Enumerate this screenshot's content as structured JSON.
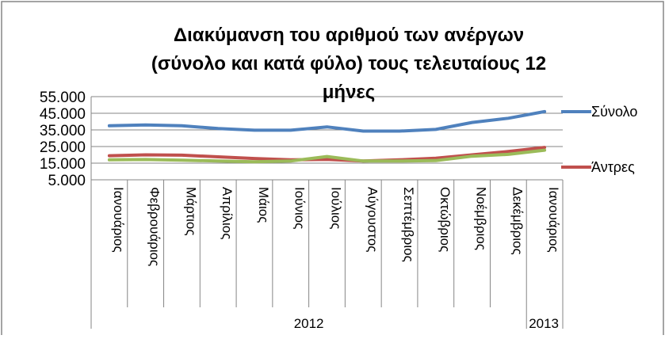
{
  "chart_data": {
    "type": "line",
    "title_lines": [
      "Διακύμανση του αριθμού των ανέργων",
      "(σύνολο και κατά φύλο) τους τελευταίους 12",
      "μήνες"
    ],
    "categories": [
      "Ιανουάριος",
      "Φεβρουάριος",
      "Μάρτιος",
      "Απρίλιος",
      "Μάιος",
      "Ιούνιος",
      "Ιούλιος",
      "Αύγουστος",
      "Σεπτέμβριος",
      "Οκτώβριος",
      "Νοέμβριος",
      "Δεκέμβριος",
      "Ιανουάριος"
    ],
    "year_groups": [
      {
        "label": "2012",
        "start": 0,
        "end": 11
      },
      {
        "label": "2013",
        "start": 12,
        "end": 12
      }
    ],
    "yticks": [
      "55.000",
      "45.000",
      "35.000",
      "25.000",
      "15.000",
      "5.000"
    ],
    "ylim": [
      5000,
      55000
    ],
    "grid": true,
    "legend_position": "right",
    "series": [
      {
        "name": "Σύνολο",
        "color": "#4F81BD",
        "values": [
          37500,
          38000,
          37500,
          35800,
          34800,
          34800,
          36800,
          34300,
          34300,
          35300,
          39500,
          42000,
          46000
        ]
      },
      {
        "name": "Άντρες",
        "color": "#C0504D",
        "values": [
          19500,
          20000,
          19800,
          18800,
          17800,
          17000,
          17300,
          16300,
          17000,
          18000,
          20000,
          22000,
          24500
        ]
      },
      {
        "series_color_only": true,
        "color": "#9BBB59",
        "values": [
          17000,
          17200,
          16800,
          16300,
          15800,
          16300,
          19000,
          16300,
          16300,
          16500,
          19200,
          20300,
          22800
        ]
      }
    ]
  }
}
